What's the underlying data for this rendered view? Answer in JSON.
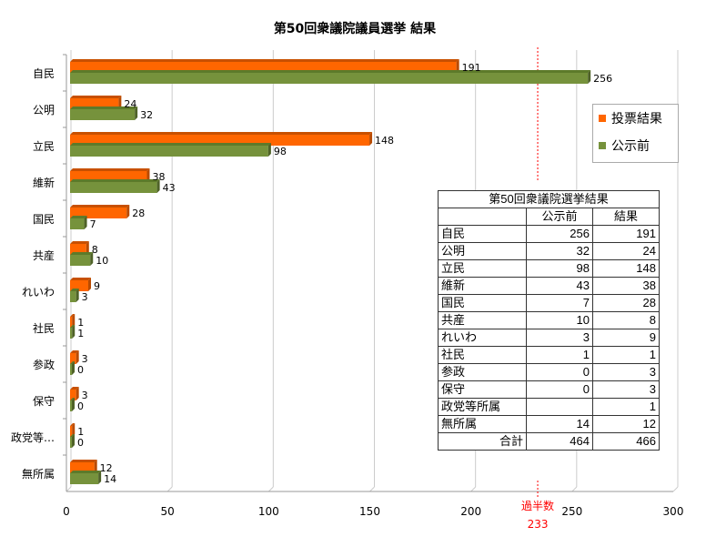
{
  "chart_data": {
    "type": "bar",
    "orientation": "horizontal",
    "title": "第50回衆議院議員選挙  結果",
    "categories": [
      "自民",
      "公明",
      "立民",
      "維新",
      "国民",
      "共産",
      "れいわ",
      "社民",
      "参政",
      "保守",
      "政党等…",
      "無所属"
    ],
    "series": [
      {
        "name": "投票結果",
        "color": "#ff6600",
        "values": [
          191,
          24,
          148,
          38,
          28,
          8,
          9,
          1,
          3,
          3,
          1,
          12
        ]
      },
      {
        "name": "公示前",
        "color": "#76923c",
        "values": [
          256,
          32,
          98,
          43,
          7,
          10,
          3,
          1,
          0,
          0,
          0,
          14
        ]
      }
    ],
    "xlim": [
      0,
      300
    ],
    "xticks": [
      "0",
      "50",
      "100",
      "150",
      "200",
      "250",
      "300"
    ],
    "grid": true,
    "legend": "right",
    "annotation": {
      "label": "過半数",
      "value": 233,
      "value_label": "233",
      "color": "#ff0000"
    }
  },
  "table": {
    "title": "第50回衆議院選挙結果",
    "headers": [
      "",
      "公示前",
      "結果"
    ],
    "rows": [
      [
        "自民",
        "256",
        "191"
      ],
      [
        "公明",
        "32",
        "24"
      ],
      [
        "立民",
        "98",
        "148"
      ],
      [
        "維新",
        "43",
        "38"
      ],
      [
        "国民",
        "7",
        "28"
      ],
      [
        "共産",
        "10",
        "8"
      ],
      [
        "れいわ",
        "3",
        "9"
      ],
      [
        "社民",
        "1",
        "1"
      ],
      [
        "参政",
        "0",
        "3"
      ],
      [
        "保守",
        "0",
        "3"
      ],
      [
        "政党等所属",
        "",
        "1"
      ],
      [
        "無所属",
        "14",
        "12"
      ]
    ],
    "total": [
      "合計",
      "464",
      "466"
    ]
  }
}
